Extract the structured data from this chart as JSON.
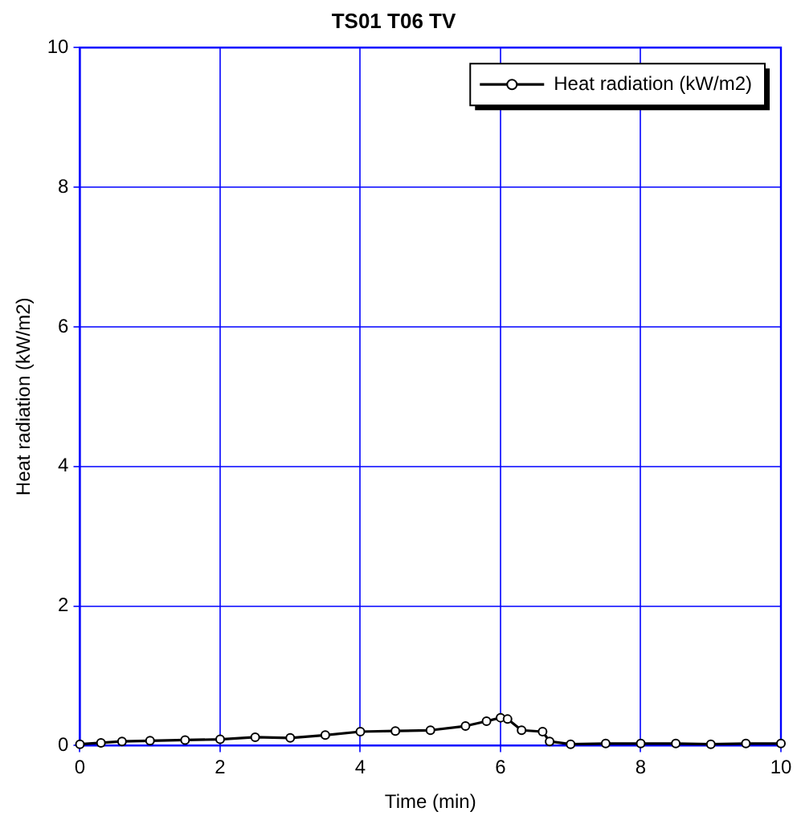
{
  "chart_data": {
    "type": "line",
    "title": "TS01 T06 TV",
    "xlabel": "Time (min)",
    "ylabel": "Heat radiation (kW/m2)",
    "xlim": [
      0,
      10
    ],
    "xticks": [
      0,
      2,
      4,
      6,
      8,
      10
    ],
    "ylim": [
      0,
      10
    ],
    "yticks": [
      0,
      2,
      4,
      6,
      8,
      10
    ],
    "grid": true,
    "legend": "top right",
    "marker": "circle",
    "series": [
      {
        "name": "Heat radiation (kW/m2)",
        "color": "#000000",
        "x": [
          0,
          0.3,
          0.6,
          1,
          1.5,
          2,
          2.5,
          3,
          3.5,
          4,
          4.5,
          5,
          5.5,
          5.8,
          6,
          6.1,
          6.3,
          6.6,
          6.7,
          7,
          7.5,
          8,
          8.5,
          9,
          9.5,
          10
        ],
        "values": [
          0.02,
          0.04,
          0.06,
          0.07,
          0.08,
          0.09,
          0.12,
          0.11,
          0.15,
          0.2,
          0.21,
          0.22,
          0.28,
          0.35,
          0.4,
          0.38,
          0.22,
          0.2,
          0.06,
          0.02,
          0.03,
          0.03,
          0.03,
          0.02,
          0.03,
          0.03
        ]
      }
    ]
  }
}
